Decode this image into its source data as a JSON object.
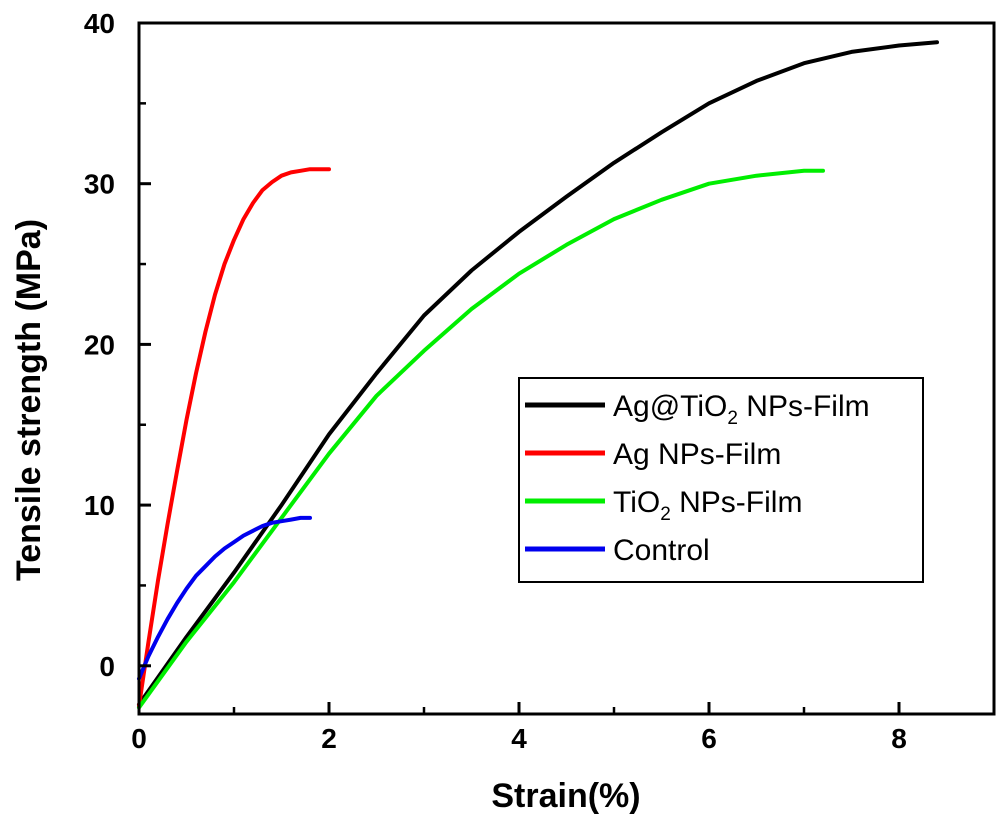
{
  "chart_data": {
    "type": "line",
    "xlabel": "Strain(%)",
    "ylabel": "Tensile strength (MPa)",
    "xlim": [
      0,
      9
    ],
    "ylim": [
      -3,
      40
    ],
    "xticks": [
      0,
      2,
      4,
      6,
      8
    ],
    "yticks": [
      0,
      10,
      20,
      30,
      40
    ],
    "legend_position": "center-right",
    "series": [
      {
        "name": "Ag@TiO2 NPs-Film",
        "legend_main": "Ag@TiO",
        "legend_sub": "2",
        "legend_rest": " NPs-Film",
        "color": "#000000",
        "x": [
          0,
          0.5,
          1,
          1.5,
          2,
          2.5,
          3,
          3.5,
          4,
          4.5,
          5,
          5.5,
          6,
          6.5,
          7,
          7.5,
          8,
          8.4
        ],
        "y": [
          -2.4,
          1.8,
          5.8,
          10,
          14.4,
          18.2,
          21.8,
          24.6,
          27,
          29.2,
          31.3,
          33.2,
          35,
          36.4,
          37.5,
          38.2,
          38.6,
          38.8
        ]
      },
      {
        "name": "Ag NPs-Film",
        "legend_main": "Ag NPs-Film",
        "legend_sub": "",
        "legend_rest": "",
        "color": "#ff0000",
        "x": [
          0,
          0.1,
          0.2,
          0.3,
          0.4,
          0.5,
          0.6,
          0.7,
          0.8,
          0.9,
          1.0,
          1.1,
          1.2,
          1.3,
          1.4,
          1.5,
          1.6,
          1.7,
          1.8,
          1.9,
          2.0
        ],
        "y": [
          -2.5,
          1.5,
          5.3,
          8.8,
          12.1,
          15.3,
          18.2,
          20.8,
          23.1,
          25.0,
          26.5,
          27.8,
          28.8,
          29.6,
          30.1,
          30.5,
          30.7,
          30.8,
          30.9,
          30.9,
          30.9
        ]
      },
      {
        "name": "TiO2 NPs-Film",
        "legend_main": "TiO",
        "legend_sub": "2",
        "legend_rest": " NPs-Film",
        "color": "#00ee00",
        "x": [
          0,
          0.5,
          1,
          1.5,
          2,
          2.5,
          3,
          3.5,
          4,
          4.5,
          5,
          5.5,
          6,
          6.5,
          7,
          7.2
        ],
        "y": [
          -2.6,
          1.5,
          5.2,
          9.2,
          13.2,
          16.8,
          19.6,
          22.2,
          24.4,
          26.2,
          27.8,
          29.0,
          30.0,
          30.5,
          30.8,
          30.8
        ]
      },
      {
        "name": "Control",
        "legend_main": "Control",
        "legend_sub": "",
        "legend_rest": "",
        "color": "#0000ee",
        "x": [
          0,
          0.1,
          0.2,
          0.3,
          0.4,
          0.5,
          0.6,
          0.7,
          0.8,
          0.9,
          1.0,
          1.1,
          1.2,
          1.3,
          1.4,
          1.5,
          1.6,
          1.7,
          1.8
        ],
        "y": [
          -0.8,
          0.6,
          1.8,
          2.9,
          3.9,
          4.8,
          5.6,
          6.2,
          6.8,
          7.3,
          7.7,
          8.1,
          8.4,
          8.7,
          8.9,
          9.0,
          9.1,
          9.2,
          9.2
        ]
      }
    ]
  }
}
